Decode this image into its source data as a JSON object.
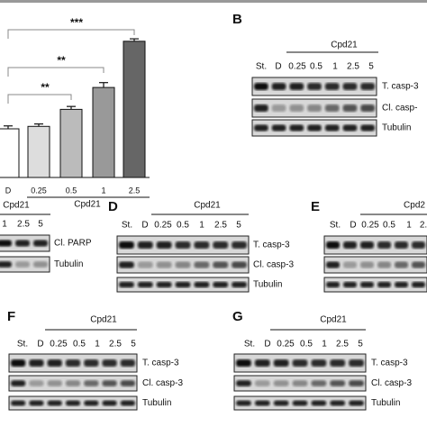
{
  "chart_data": {
    "type": "bar",
    "categories": [
      "D",
      "0.25",
      "0.5",
      "1",
      "2.5"
    ],
    "values": [
      1,
      1.05,
      1.4,
      1.85,
      2.8
    ],
    "errors": [
      0.06,
      0.05,
      0.06,
      0.1,
      0.05
    ],
    "colors": [
      "#ffffff",
      "#dddddd",
      "#bbbbbb",
      "#999999",
      "#666666"
    ],
    "ylim": [
      0,
      3
    ],
    "xlabel": "Cpd21",
    "significance": [
      "**",
      "**",
      "***"
    ]
  },
  "panels": [
    {
      "letter": "B",
      "treatment": "Cpd21",
      "lanes": [
        "St.",
        "D",
        "0.25",
        "0.5",
        "1",
        "2.5",
        "5"
      ],
      "rows": [
        "T. casp-3",
        "Cl. casp-",
        "Tubulin"
      ]
    },
    {
      "treatment": "Cpd21",
      "lanes": [
        "1",
        "2.5",
        "5"
      ],
      "rows": [
        "Cl. PARP",
        "Tubulin"
      ]
    },
    {
      "letter": "D",
      "treatment": "Cpd21",
      "lanes": [
        "St.",
        "D",
        "0.25",
        "0.5",
        "1",
        "2.5",
        "5"
      ],
      "rows": [
        "T. casp-3",
        "Cl. casp-3",
        "Tubulin"
      ]
    },
    {
      "letter": "E",
      "treatment": "Cpd2",
      "lanes": [
        "St.",
        "D",
        "0.25",
        "0.5",
        "1",
        "2."
      ],
      "rows": []
    },
    {
      "letter": "F",
      "treatment": "Cpd21",
      "lanes": [
        "St.",
        "D",
        "0.25",
        "0.5",
        "1",
        "2.5",
        "5"
      ],
      "rows": [
        "T. casp-3",
        "Cl. casp-3",
        "Tubulin"
      ]
    },
    {
      "letter": "G",
      "treatment": "Cpd21",
      "lanes": [
        "St.",
        "D",
        "0.25",
        "0.5",
        "1",
        "2.5",
        "5"
      ],
      "rows": [
        "T. casp-3",
        "Cl. casp-3",
        "Tubulin"
      ]
    }
  ]
}
